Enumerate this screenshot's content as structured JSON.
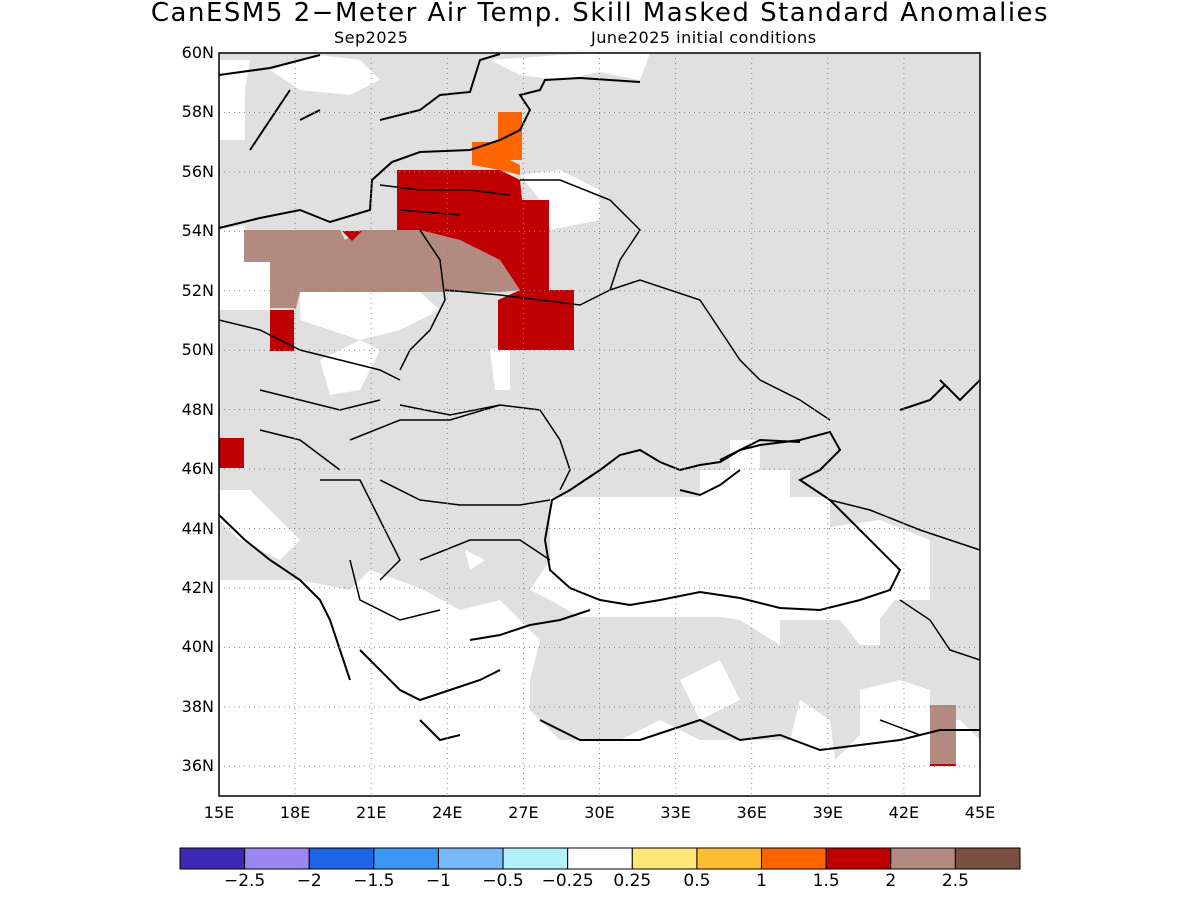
{
  "title": "CanESM5 2−Meter Air Temp. Skill Masked Standard Anomalies",
  "subtitle_left": "Sep2025",
  "subtitle_right": "June2025 initial conditions",
  "map": {
    "lon_range": [
      15,
      45
    ],
    "lat_range": [
      35,
      60
    ],
    "lat_labels": [
      "60N",
      "58N",
      "56N",
      "54N",
      "52N",
      "50N",
      "48N",
      "46N",
      "44N",
      "42N",
      "40N",
      "38N",
      "36N"
    ],
    "lon_labels": [
      "15E",
      "18E",
      "21E",
      "24E",
      "27E",
      "30E",
      "33E",
      "36E",
      "39E",
      "42E",
      "45E"
    ],
    "gridlines": "dotted",
    "mask_color": "#e0e0e0",
    "regions": [
      {
        "label": "Poland positive anomaly",
        "category": "2 to 2.5",
        "color": "#b38a7f"
      },
      {
        "label": "Belarus positive anomaly",
        "category": "1.5 to 2",
        "color": "#c00000"
      },
      {
        "label": "Latvia anomaly",
        "category": "1 to 1.5",
        "color": "#ff6600"
      },
      {
        "label": "Czech anomaly",
        "category": "1.5 to 2",
        "color": "#c00000"
      },
      {
        "label": "Austria anomaly",
        "category": "1.5 to 2",
        "color": "#c00000"
      },
      {
        "label": "SE Turkey anomaly",
        "category": "2 to 2.5",
        "color": "#b38a7f"
      }
    ]
  },
  "colorbar": {
    "colors": [
      "#3c28b4",
      "#9b86f5",
      "#1e64e6",
      "#3c96f5",
      "#78b9fa",
      "#b4f0fa",
      "#ffffff",
      "#ffe678",
      "#ffbe32",
      "#ff6400",
      "#c00000",
      "#b38a7f",
      "#7a5043"
    ],
    "labels": [
      "−2.5",
      "−2",
      "−1.5",
      "−1",
      "−0.5",
      "−0.25",
      "0.25",
      "0.5",
      "1",
      "1.5",
      "2",
      "2.5"
    ]
  }
}
